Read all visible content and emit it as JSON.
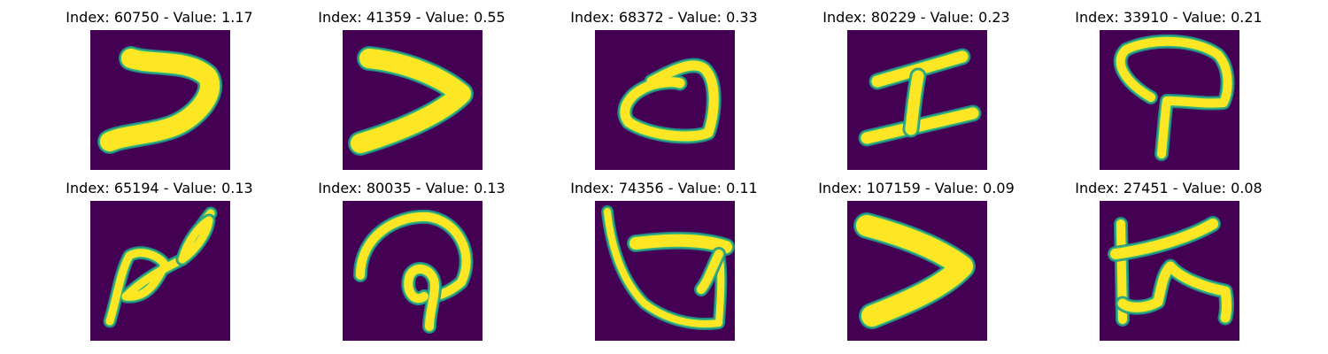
{
  "colors": {
    "background": "#440154",
    "stroke_core": "#fde725",
    "stroke_edge": "#35b779",
    "stroke_mid": "#21918c"
  },
  "panels": [
    {
      "title": "Index: 60750 - Value: 1.17",
      "glyph": "zigzag-stroke-glyph"
    },
    {
      "title": "Index: 41359 - Value: 0.55",
      "glyph": "chevron-stroke-glyph"
    },
    {
      "title": "Index: 68372 - Value: 0.33",
      "glyph": "loop-stroke-glyph"
    },
    {
      "title": "Index: 80229 - Value: 0.23",
      "glyph": "h-stroke-glyph"
    },
    {
      "title": "Index: 33910 - Value: 0.21",
      "glyph": "hook-stroke-glyph"
    },
    {
      "title": "Index: 65194 - Value: 0.13",
      "glyph": "double-loop-stroke-glyph"
    },
    {
      "title": "Index: 80035 - Value: 0.13",
      "glyph": "mushroom-stroke-glyph"
    },
    {
      "title": "Index: 74356 - Value: 0.11",
      "glyph": "cup-stroke-glyph"
    },
    {
      "title": "Index: 107159 - Value: 0.09",
      "glyph": "thick-chevron-stroke-glyph"
    },
    {
      "title": "Index: 27451 - Value: 0.08",
      "glyph": "tied-strokes-glyph"
    }
  ]
}
